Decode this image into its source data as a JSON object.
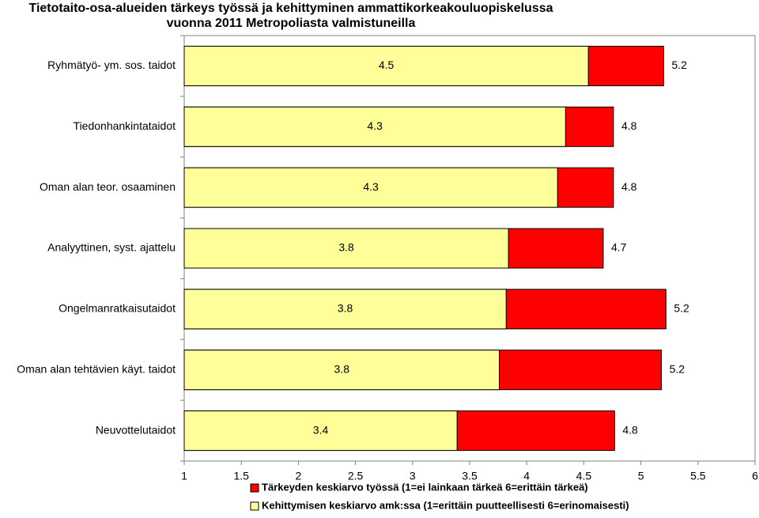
{
  "chart_data": {
    "type": "bar",
    "orientation": "horizontal",
    "title": [
      "Tietotaito-osa-alueiden tärkeys työssä ja kehittyminen ammattikorkeakouluopiskelussa",
      "vuonna 2011 Metropoliasta valmistuneilla"
    ],
    "categories": [
      "Ryhmätyö- ym. sos. taidot",
      "Tiedonhankintataidot",
      "Oman alan teor. osaaminen",
      "Analyyttinen, syst. ajattelu",
      "Ongelmanratkaisutaidot",
      "Oman alan tehtävien käyt. taidot",
      "Neuvottelutaidot"
    ],
    "series": [
      {
        "name": "Tärkeyden keskiarvo työssä (1=ei lainkaan tärkeä 6=erittäin tärkeä)",
        "color": "#ff0000",
        "values": [
          5.2,
          4.76,
          4.76,
          4.67,
          5.22,
          5.18,
          4.77
        ],
        "value_labels": [
          "5.2",
          "4.8",
          "4.8",
          "4.7",
          "5.2",
          "5.2",
          "4.8"
        ]
      },
      {
        "name": "Kehittymisen keskiarvo amk:ssa (1=erittäin puutteellisesti 6=erinomaisesti)",
        "color": "#ffff99",
        "values": [
          4.54,
          4.34,
          4.27,
          3.84,
          3.82,
          3.76,
          3.39
        ],
        "value_labels": [
          "4.5",
          "4.3",
          "4.3",
          "3.8",
          "3.8",
          "3.8",
          "3.4"
        ]
      }
    ],
    "xlim": [
      1,
      6
    ],
    "xticks": [
      1,
      1.5,
      2,
      2.5,
      3,
      3.5,
      4,
      4.5,
      5,
      5.5,
      6
    ],
    "grid": false
  }
}
